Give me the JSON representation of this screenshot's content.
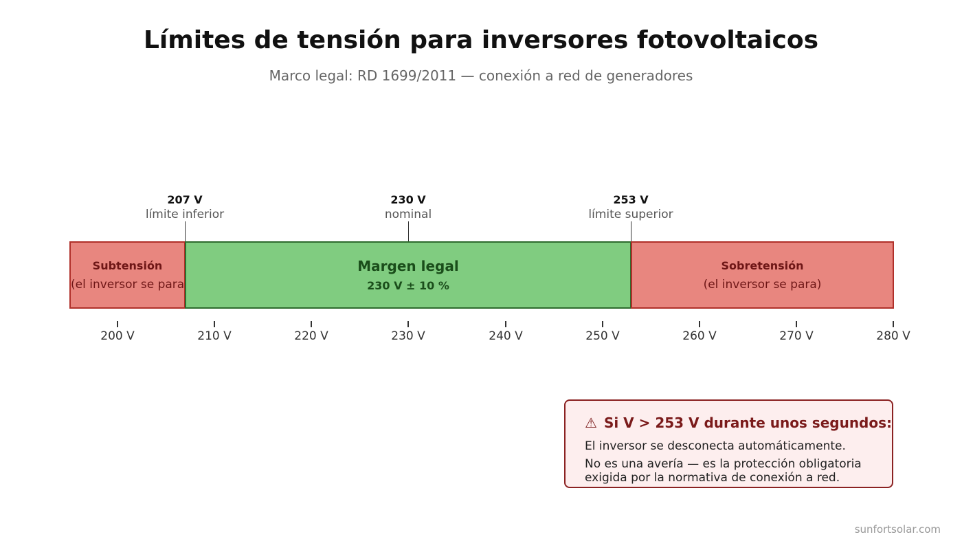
{
  "title": "Límites de tensión para inversores fotovoltaicos",
  "subtitle": "Marco legal: RD 1699/2011 — conexión a red de generadores",
  "scale": {
    "min": 195,
    "max": 280
  },
  "bands": [
    {
      "id": "under",
      "from": 195,
      "to": 207,
      "label": "Subtensión",
      "sublabel": "(el inversor se para)",
      "color": "#e8867f"
    },
    {
      "id": "legal",
      "from": 207,
      "to": 253,
      "label": "Margen legal",
      "sublabel": "230 V ± 10 %",
      "color": "#80cc80"
    },
    {
      "id": "over",
      "from": 253,
      "to": 280,
      "label": "Sobretensión",
      "sublabel": "(el inversor se para)",
      "color": "#e8867f"
    }
  ],
  "markers": [
    {
      "value": 207,
      "value_label": "207 V",
      "desc": "límite inferior"
    },
    {
      "value": 230,
      "value_label": "230 V",
      "desc": "nominal"
    },
    {
      "value": 253,
      "value_label": "253 V",
      "desc": "límite superior"
    }
  ],
  "ticks": [
    {
      "value": 200,
      "label": "200 V"
    },
    {
      "value": 210,
      "label": "210 V"
    },
    {
      "value": 220,
      "label": "220 V"
    },
    {
      "value": 230,
      "label": "230 V"
    },
    {
      "value": 240,
      "label": "240 V"
    },
    {
      "value": 250,
      "label": "250 V"
    },
    {
      "value": 260,
      "label": "260 V"
    },
    {
      "value": 270,
      "label": "270 V"
    },
    {
      "value": 280,
      "label": "280 V"
    }
  ],
  "warning": {
    "icon": "⚠",
    "icon_name": "warning-icon",
    "title": "Si V > 253 V durante unos segundos:",
    "line1": "El inversor se desconecta automáticamente.",
    "line2": "No es una avería — es la protección obligatoria",
    "line3": "exigida por la normativa de conexión a red."
  },
  "watermark": "sunfortsolar.com"
}
